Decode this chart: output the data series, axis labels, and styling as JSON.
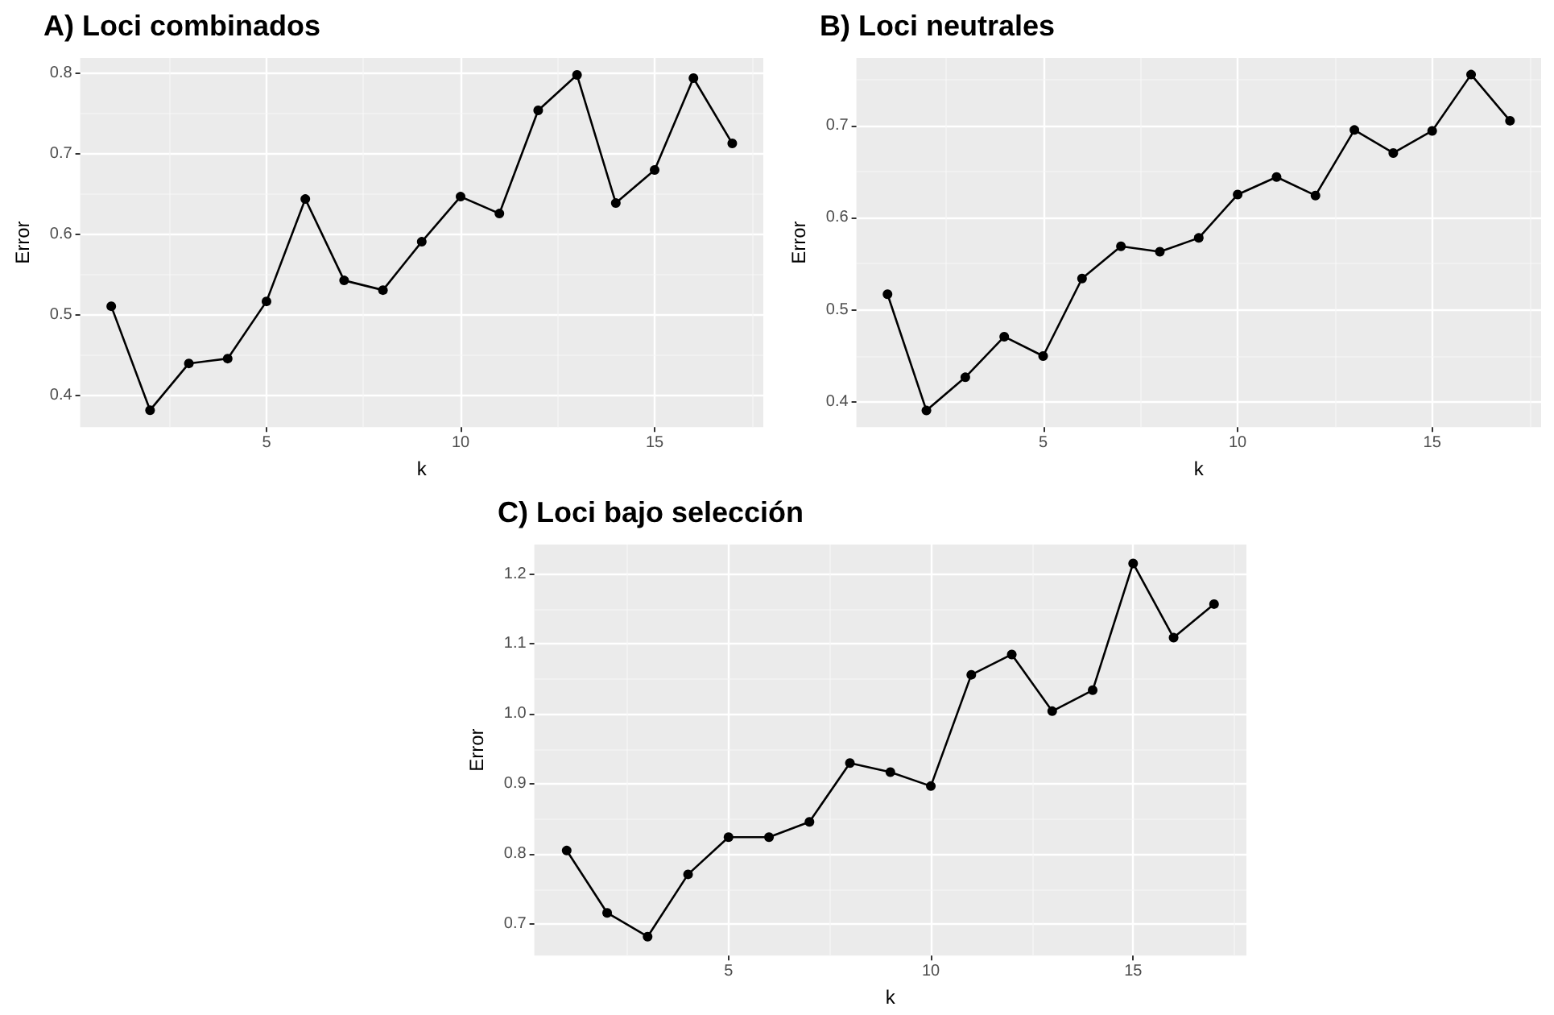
{
  "chart_data": [
    {
      "type": "line",
      "title": "A) Loci combinados",
      "xlabel": "k",
      "ylabel": "Error",
      "x": [
        1,
        2,
        3,
        4,
        5,
        6,
        7,
        8,
        9,
        10,
        11,
        12,
        13,
        14,
        15,
        16,
        17
      ],
      "series": [
        {
          "color": "#000000",
          "values": [
            0.511,
            0.382,
            0.44,
            0.446,
            0.517,
            0.644,
            0.543,
            0.531,
            0.591,
            0.647,
            0.626,
            0.754,
            0.798,
            0.639,
            0.68,
            0.794,
            0.713
          ]
        }
      ],
      "xlim": [
        0.2,
        17.8
      ],
      "xticks": [
        5,
        10,
        15
      ],
      "ylim": [
        0.361,
        0.819
      ],
      "yticks": [
        0.4,
        0.5,
        0.6,
        0.7,
        0.8
      ],
      "grid": true,
      "marker": "circle",
      "line_style": "solid"
    },
    {
      "type": "line",
      "title": "B) Loci neutrales",
      "xlabel": "k",
      "ylabel": "Error",
      "x": [
        1,
        2,
        3,
        4,
        5,
        6,
        7,
        8,
        9,
        10,
        11,
        12,
        13,
        14,
        15,
        16,
        17
      ],
      "series": [
        {
          "color": "#000000",
          "values": [
            0.517,
            0.391,
            0.427,
            0.471,
            0.45,
            0.534,
            0.569,
            0.563,
            0.578,
            0.625,
            0.644,
            0.624,
            0.695,
            0.67,
            0.694,
            0.755,
            0.705
          ]
        }
      ],
      "xlim": [
        0.2,
        17.8
      ],
      "xticks": [
        5,
        10,
        15
      ],
      "ylim": [
        0.373,
        0.773
      ],
      "yticks": [
        0.4,
        0.5,
        0.6,
        0.7
      ],
      "grid": true,
      "marker": "circle",
      "line_style": "solid"
    },
    {
      "type": "line",
      "title": "C) Loci bajo selección",
      "xlabel": "k",
      "ylabel": "Error",
      "x": [
        1,
        2,
        3,
        4,
        5,
        6,
        7,
        8,
        9,
        10,
        11,
        12,
        13,
        14,
        15,
        16,
        17
      ],
      "series": [
        {
          "color": "#000000",
          "values": [
            0.805,
            0.716,
            0.682,
            0.771,
            0.824,
            0.824,
            0.846,
            0.93,
            0.917,
            0.897,
            1.056,
            1.085,
            1.004,
            1.034,
            1.215,
            1.109,
            1.157
          ]
        }
      ],
      "xlim": [
        0.2,
        17.8
      ],
      "xticks": [
        5,
        10,
        15
      ],
      "ylim": [
        0.655,
        1.242
      ],
      "yticks": [
        0.7,
        0.8,
        0.9,
        {
          "value": 1.0,
          "label": "1.0"
        },
        1.1,
        1.2
      ],
      "grid": true,
      "marker": "circle",
      "line_style": "solid"
    }
  ]
}
